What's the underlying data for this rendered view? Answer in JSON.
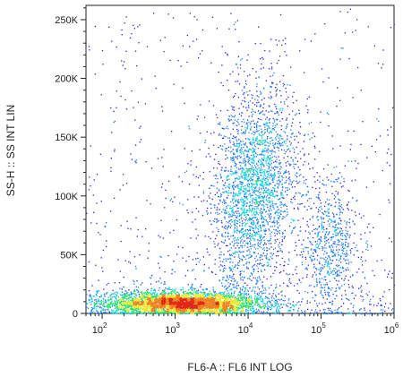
{
  "chart_data": {
    "type": "scatter",
    "title": "",
    "xlabel": "FL6-A :: FL6 INT LOG",
    "ylabel": "SS-H :: SS INT LIN",
    "x_scale": "log",
    "xlim": [
      60,
      1000000
    ],
    "ylim": [
      0,
      262144
    ],
    "x_ticks": [
      {
        "value": 100,
        "base": "10",
        "exp": "2"
      },
      {
        "value": 1000,
        "base": "10",
        "exp": "3"
      },
      {
        "value": 10000,
        "base": "10",
        "exp": "4"
      },
      {
        "value": 100000,
        "base": "10",
        "exp": "5"
      },
      {
        "value": 1000000,
        "base": "10",
        "exp": "6"
      }
    ],
    "y_ticks": [
      {
        "value": 0,
        "label": "0"
      },
      {
        "value": 50000,
        "label": "50K"
      },
      {
        "value": 100000,
        "label": "100K"
      },
      {
        "value": 150000,
        "label": "150K"
      },
      {
        "value": 200000,
        "label": "200K"
      },
      {
        "value": 250000,
        "label": "250K"
      }
    ],
    "grid": false,
    "legend": "none",
    "colormap": [
      "#2b1fd0",
      "#1e7ff0",
      "#18d0e0",
      "#2ee06a",
      "#e8e830",
      "#f08020",
      "#e02818"
    ],
    "populations": [
      {
        "x_center": 1200,
        "x_spread_decades": 0.55,
        "y_center": 9000,
        "y_spread": 5000,
        "relative_density": 1.0
      },
      {
        "x_center": 12000,
        "x_spread_decades": 0.3,
        "y_center": 105000,
        "y_spread": 42000,
        "relative_density": 0.45
      },
      {
        "x_center": 130000,
        "x_spread_decades": 0.2,
        "y_center": 60000,
        "y_spread": 28000,
        "relative_density": 0.12
      }
    ]
  }
}
